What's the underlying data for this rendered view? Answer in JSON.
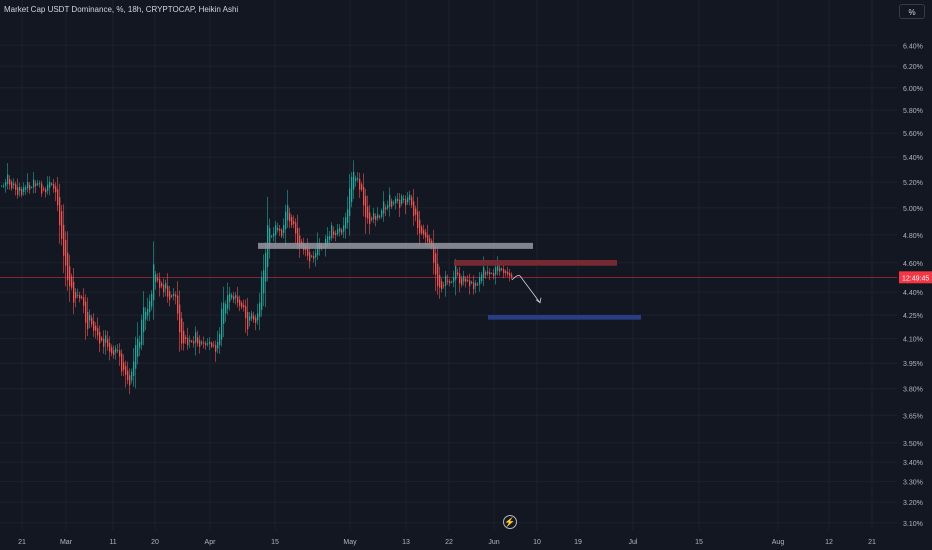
{
  "header": {
    "title": "Market Cap USDT Dominance, %, 18h, CRYPTOCAP, Heikin Ashi"
  },
  "price_scale": {
    "unit_label": "%"
  },
  "colors": {
    "background": "#131722",
    "up": "#26a69a",
    "down": "#ef5350",
    "grid": "#1e222d",
    "axis_text": "#b2b5be",
    "resistance_zone": "#7a2a32",
    "support_zone": "#2a3f8a",
    "level_line": "#9598a1",
    "price_line": "#f23645",
    "projection_arrow": "#d1d4dc"
  },
  "icons": {
    "timeline_marker": "lightning-icon"
  },
  "chart_data": {
    "type": "candlestick",
    "title": "Market Cap USDT Dominance, %, 18h, CRYPTOCAP, Heikin Ashi",
    "scale": "log",
    "ylim": [
      3.09,
      6.55
    ],
    "y_ticks": [
      "6.40%",
      "6.20%",
      "6.00%",
      "5.80%",
      "5.60%",
      "5.40%",
      "5.20%",
      "5.00%",
      "4.80%",
      "4.60%",
      "4.40%",
      "4.25%",
      "4.10%",
      "3.95%",
      "3.80%",
      "3.65%",
      "3.50%",
      "3.40%",
      "3.30%",
      "3.20%",
      "3.10%"
    ],
    "x_ticks": [
      "21",
      "Mar",
      "11",
      "20",
      "Apr",
      "15",
      "May",
      "13",
      "22",
      "Jun",
      "10",
      "19",
      "Jul",
      "15",
      "Aug",
      "12",
      "21"
    ],
    "current_price_label": "12:49:45",
    "current_price": 4.5,
    "series_close": [
      5.17,
      5.17,
      5.2,
      5.26,
      5.18,
      5.15,
      5.19,
      5.14,
      5.1,
      5.16,
      5.1,
      5.16,
      5.16,
      5.2,
      5.14,
      5.16,
      5.22,
      5.17,
      5.19,
      5.19,
      5.11,
      5.14,
      5.12,
      5.18,
      5.2,
      5.19,
      5.15,
      5.12,
      5.02,
      4.87,
      4.77,
      4.65,
      4.58,
      4.48,
      4.44,
      4.43,
      4.33,
      4.36,
      4.38,
      4.36,
      4.36,
      4.31,
      4.2,
      4.16,
      4.25,
      4.19,
      4.15,
      4.15,
      4.12,
      4.07,
      4.09,
      4.05,
      4.12,
      4.05,
      4.02,
      4.01,
      4.0,
      4.04,
      4.03,
      3.99,
      3.9,
      3.91,
      3.88,
      3.85,
      3.82,
      3.9,
      3.96,
      4.06,
      4.1,
      4.08,
      4.22,
      4.3,
      4.27,
      4.29,
      4.34,
      4.39,
      4.59,
      4.52,
      4.48,
      4.43,
      4.44,
      4.4,
      4.46,
      4.37,
      4.35,
      4.37,
      4.39,
      4.37,
      4.26,
      4.14,
      4.07,
      4.07,
      4.1,
      4.06,
      4.09,
      4.08,
      4.07,
      4.14,
      4.07,
      4.05,
      4.08,
      4.07,
      4.06,
      4.07,
      4.08,
      4.05,
      4.06,
      4.02,
      4.08,
      4.13,
      4.29,
      4.33,
      4.32,
      4.38,
      4.39,
      4.38,
      4.35,
      4.38,
      4.33,
      4.31,
      4.3,
      4.3,
      4.23,
      4.16,
      4.24,
      4.26,
      4.22,
      4.2,
      4.26,
      4.33,
      4.5,
      4.55,
      4.67,
      4.87,
      4.85,
      4.79,
      4.81,
      4.87,
      4.85,
      4.83,
      4.79,
      4.87,
      4.97,
      5.02,
      4.9,
      4.87,
      4.88,
      4.81,
      4.74,
      4.71,
      4.72,
      4.69,
      4.69,
      4.65,
      4.61,
      4.65,
      4.63,
      4.67,
      4.74,
      4.74,
      4.7,
      4.71,
      4.77,
      4.79,
      4.79,
      4.87,
      4.8,
      4.8,
      4.84,
      4.85,
      4.81,
      4.87,
      4.93,
      4.99,
      5.15,
      5.24,
      5.28,
      5.23,
      5.23,
      5.14,
      5.14,
      5.02,
      4.93,
      4.92,
      4.88,
      4.91,
      4.96,
      4.91,
      4.95,
      4.93,
      4.98,
      5.05,
      4.99,
      5.02,
      5.1,
      5.01,
      5.04,
      5.07,
      5.07,
      5.0,
      5.09,
      5.07,
      5.02,
      5.08,
      5.1,
      5.02,
      4.94,
      4.95,
      4.85,
      4.81,
      4.81,
      4.8,
      4.78,
      4.75,
      4.74,
      4.71,
      4.6,
      4.52,
      4.44,
      4.43,
      4.42,
      4.44,
      4.51,
      4.47,
      4.46,
      4.47,
      4.5,
      4.58,
      4.52,
      4.46,
      4.45,
      4.51,
      4.47,
      4.48,
      4.44,
      4.47,
      4.42,
      4.46,
      4.45,
      4.5,
      4.52,
      4.57,
      4.52,
      4.54,
      4.52,
      4.53,
      4.51,
      4.57,
      4.58,
      4.54,
      4.56,
      4.53,
      4.53,
      4.52,
      4.51,
      4.5
    ],
    "drawings": [
      {
        "type": "horizontal-level",
        "color": "level_line",
        "price": 4.72,
        "from_bar": 140,
        "to_bar": 270
      },
      {
        "type": "zone",
        "color": "resistance_zone",
        "price_top": 4.62,
        "price_bottom": 4.58,
        "from_bar": 245,
        "to_bar": 340
      },
      {
        "type": "zone",
        "color": "support_zone",
        "price_top": 4.25,
        "price_bottom": 4.22,
        "from_bar": 262,
        "to_bar": 352
      },
      {
        "type": "arrow",
        "color": "projection_arrow",
        "from": [
          283,
          4.51
        ],
        "to": [
          294,
          4.33
        ]
      }
    ]
  }
}
